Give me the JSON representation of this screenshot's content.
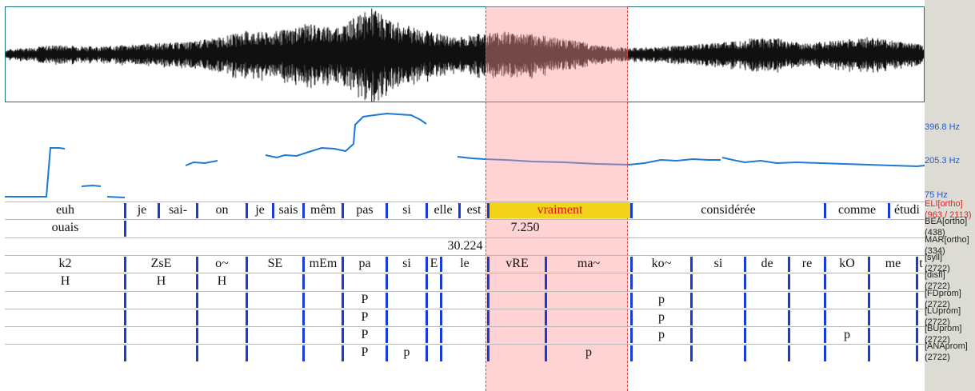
{
  "freq_labels": {
    "top": "396.8 Hz",
    "mid": "205.3 Hz",
    "bottom": "75 Hz"
  },
  "tiers": [
    {
      "name": "ELI[ortho]",
      "count": "(963 / 2113)",
      "segments": [
        {
          "x0": 0,
          "x1": 150,
          "text": "euh"
        },
        {
          "x0": 150,
          "x1": 192,
          "text": "je"
        },
        {
          "x0": 192,
          "x1": 240,
          "text": "sai-"
        },
        {
          "x0": 240,
          "x1": 302,
          "text": "on"
        },
        {
          "x0": 302,
          "x1": 335,
          "text": "je"
        },
        {
          "x0": 335,
          "x1": 373,
          "text": "sais"
        },
        {
          "x0": 373,
          "x1": 422,
          "text": "mêm"
        },
        {
          "x0": 422,
          "x1": 477,
          "text": "pas"
        },
        {
          "x0": 477,
          "x1": 527,
          "text": "si"
        },
        {
          "x0": 527,
          "x1": 568,
          "text": "elle"
        },
        {
          "x0": 568,
          "x1": 604,
          "text": "est"
        },
        {
          "x0": 604,
          "x1": 783,
          "text": "vraiment",
          "selected": true
        },
        {
          "x0": 783,
          "x1": 1025,
          "text": "considérée"
        },
        {
          "x0": 1025,
          "x1": 1105,
          "text": "comme"
        },
        {
          "x0": 1105,
          "x1": 1150,
          "text": "étudi"
        }
      ]
    },
    {
      "name": "BEA[ortho]",
      "count": "(438)",
      "segments": [
        {
          "x0": 0,
          "x1": 150,
          "text": "ouais"
        },
        {
          "x0": 150,
          "x1": 1150,
          "text": "7.250"
        }
      ]
    },
    {
      "name": "MAR[ortho]",
      "count": "(334)",
      "segments": [
        {
          "x0": 0,
          "x1": 1150,
          "text": "30.224"
        }
      ]
    },
    {
      "name": "[syll]",
      "count": "(2722)",
      "segments": [
        {
          "x0": 0,
          "x1": 150,
          "text": "k2"
        },
        {
          "x0": 150,
          "x1": 240,
          "text": "ZsE"
        },
        {
          "x0": 240,
          "x1": 302,
          "text": "o~"
        },
        {
          "x0": 302,
          "x1": 373,
          "text": "SE"
        },
        {
          "x0": 373,
          "x1": 422,
          "text": "mEm"
        },
        {
          "x0": 422,
          "x1": 477,
          "text": "pa"
        },
        {
          "x0": 477,
          "x1": 527,
          "text": "si"
        },
        {
          "x0": 527,
          "x1": 545,
          "text": "E"
        },
        {
          "x0": 545,
          "x1": 604,
          "text": "le"
        },
        {
          "x0": 604,
          "x1": 676,
          "text": "vRE"
        },
        {
          "x0": 676,
          "x1": 783,
          "text": "ma~"
        },
        {
          "x0": 783,
          "x1": 858,
          "text": "ko~"
        },
        {
          "x0": 858,
          "x1": 925,
          "text": "si"
        },
        {
          "x0": 925,
          "x1": 980,
          "text": "de"
        },
        {
          "x0": 980,
          "x1": 1025,
          "text": "re"
        },
        {
          "x0": 1025,
          "x1": 1080,
          "text": "kO"
        },
        {
          "x0": 1080,
          "x1": 1140,
          "text": "me"
        },
        {
          "x0": 1140,
          "x1": 1150,
          "text": "t"
        }
      ]
    },
    {
      "name": "[disfl]",
      "count": "(2722)",
      "segments": [
        {
          "x0": 0,
          "x1": 150,
          "text": "H"
        },
        {
          "x0": 150,
          "x1": 240,
          "text": "H"
        },
        {
          "x0": 240,
          "x1": 302,
          "text": "H"
        },
        {
          "x0": 302,
          "x1": 373,
          "text": ""
        },
        {
          "x0": 373,
          "x1": 422,
          "text": ""
        },
        {
          "x0": 422,
          "x1": 477,
          "text": ""
        },
        {
          "x0": 477,
          "x1": 527,
          "text": ""
        },
        {
          "x0": 527,
          "x1": 545,
          "text": ""
        },
        {
          "x0": 545,
          "x1": 604,
          "text": ""
        },
        {
          "x0": 604,
          "x1": 676,
          "text": ""
        },
        {
          "x0": 676,
          "x1": 783,
          "text": ""
        },
        {
          "x0": 783,
          "x1": 858,
          "text": ""
        },
        {
          "x0": 858,
          "x1": 925,
          "text": ""
        },
        {
          "x0": 925,
          "x1": 980,
          "text": ""
        },
        {
          "x0": 980,
          "x1": 1025,
          "text": ""
        },
        {
          "x0": 1025,
          "x1": 1080,
          "text": ""
        },
        {
          "x0": 1080,
          "x1": 1140,
          "text": ""
        },
        {
          "x0": 1140,
          "x1": 1150,
          "text": ""
        }
      ]
    },
    {
      "name": "[FDprom]",
      "count": "(2722)",
      "segments": [
        {
          "x0": 0,
          "x1": 150,
          "text": ""
        },
        {
          "x0": 150,
          "x1": 240,
          "text": ""
        },
        {
          "x0": 240,
          "x1": 302,
          "text": ""
        },
        {
          "x0": 302,
          "x1": 373,
          "text": ""
        },
        {
          "x0": 373,
          "x1": 422,
          "text": ""
        },
        {
          "x0": 422,
          "x1": 477,
          "text": "P"
        },
        {
          "x0": 477,
          "x1": 527,
          "text": ""
        },
        {
          "x0": 527,
          "x1": 545,
          "text": ""
        },
        {
          "x0": 545,
          "x1": 604,
          "text": ""
        },
        {
          "x0": 604,
          "x1": 676,
          "text": ""
        },
        {
          "x0": 676,
          "x1": 783,
          "text": ""
        },
        {
          "x0": 783,
          "x1": 858,
          "text": "p"
        },
        {
          "x0": 858,
          "x1": 925,
          "text": ""
        },
        {
          "x0": 925,
          "x1": 980,
          "text": ""
        },
        {
          "x0": 980,
          "x1": 1025,
          "text": ""
        },
        {
          "x0": 1025,
          "x1": 1080,
          "text": ""
        },
        {
          "x0": 1080,
          "x1": 1140,
          "text": ""
        },
        {
          "x0": 1140,
          "x1": 1150,
          "text": ""
        }
      ]
    },
    {
      "name": "[LUprom]",
      "count": "(2722)",
      "segments": [
        {
          "x0": 0,
          "x1": 150,
          "text": ""
        },
        {
          "x0": 150,
          "x1": 240,
          "text": ""
        },
        {
          "x0": 240,
          "x1": 302,
          "text": ""
        },
        {
          "x0": 302,
          "x1": 373,
          "text": ""
        },
        {
          "x0": 373,
          "x1": 422,
          "text": ""
        },
        {
          "x0": 422,
          "x1": 477,
          "text": "P"
        },
        {
          "x0": 477,
          "x1": 527,
          "text": ""
        },
        {
          "x0": 527,
          "x1": 545,
          "text": ""
        },
        {
          "x0": 545,
          "x1": 604,
          "text": ""
        },
        {
          "x0": 604,
          "x1": 676,
          "text": ""
        },
        {
          "x0": 676,
          "x1": 783,
          "text": ""
        },
        {
          "x0": 783,
          "x1": 858,
          "text": "p"
        },
        {
          "x0": 858,
          "x1": 925,
          "text": ""
        },
        {
          "x0": 925,
          "x1": 980,
          "text": ""
        },
        {
          "x0": 980,
          "x1": 1025,
          "text": ""
        },
        {
          "x0": 1025,
          "x1": 1080,
          "text": ""
        },
        {
          "x0": 1080,
          "x1": 1140,
          "text": ""
        },
        {
          "x0": 1140,
          "x1": 1150,
          "text": ""
        }
      ]
    },
    {
      "name": "[BUprom]",
      "count": "(2722)",
      "segments": [
        {
          "x0": 0,
          "x1": 150,
          "text": ""
        },
        {
          "x0": 150,
          "x1": 240,
          "text": ""
        },
        {
          "x0": 240,
          "x1": 302,
          "text": ""
        },
        {
          "x0": 302,
          "x1": 373,
          "text": ""
        },
        {
          "x0": 373,
          "x1": 422,
          "text": ""
        },
        {
          "x0": 422,
          "x1": 477,
          "text": "P"
        },
        {
          "x0": 477,
          "x1": 527,
          "text": ""
        },
        {
          "x0": 527,
          "x1": 545,
          "text": ""
        },
        {
          "x0": 545,
          "x1": 604,
          "text": ""
        },
        {
          "x0": 604,
          "x1": 676,
          "text": ""
        },
        {
          "x0": 676,
          "x1": 783,
          "text": ""
        },
        {
          "x0": 783,
          "x1": 858,
          "text": "p"
        },
        {
          "x0": 858,
          "x1": 925,
          "text": ""
        },
        {
          "x0": 925,
          "x1": 980,
          "text": ""
        },
        {
          "x0": 980,
          "x1": 1025,
          "text": ""
        },
        {
          "x0": 1025,
          "x1": 1080,
          "text": "p"
        },
        {
          "x0": 1080,
          "x1": 1140,
          "text": ""
        },
        {
          "x0": 1140,
          "x1": 1150,
          "text": ""
        }
      ]
    },
    {
      "name": "[ANAprom]",
      "count": "(2722)",
      "segments": [
        {
          "x0": 0,
          "x1": 150,
          "text": ""
        },
        {
          "x0": 150,
          "x1": 240,
          "text": ""
        },
        {
          "x0": 240,
          "x1": 302,
          "text": ""
        },
        {
          "x0": 302,
          "x1": 373,
          "text": ""
        },
        {
          "x0": 373,
          "x1": 422,
          "text": ""
        },
        {
          "x0": 422,
          "x1": 477,
          "text": "P"
        },
        {
          "x0": 477,
          "x1": 527,
          "text": "p"
        },
        {
          "x0": 527,
          "x1": 545,
          "text": ""
        },
        {
          "x0": 545,
          "x1": 604,
          "text": ""
        },
        {
          "x0": 604,
          "x1": 676,
          "text": ""
        },
        {
          "x0": 676,
          "x1": 783,
          "text": "p"
        },
        {
          "x0": 783,
          "x1": 858,
          "text": ""
        },
        {
          "x0": 858,
          "x1": 925,
          "text": ""
        },
        {
          "x0": 925,
          "x1": 980,
          "text": ""
        },
        {
          "x0": 980,
          "x1": 1025,
          "text": ""
        },
        {
          "x0": 1025,
          "x1": 1080,
          "text": ""
        },
        {
          "x0": 1080,
          "x1": 1140,
          "text": ""
        },
        {
          "x0": 1140,
          "x1": 1150,
          "text": ""
        }
      ]
    }
  ]
}
